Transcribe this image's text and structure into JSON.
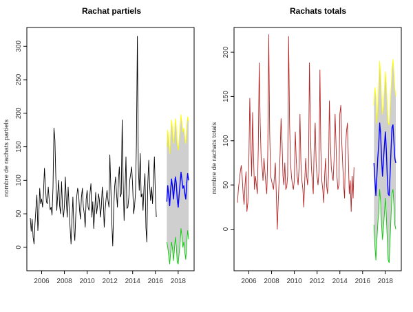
{
  "chart_data": [
    {
      "type": "line",
      "title": "Rachat partiels",
      "xlabel": "",
      "ylabel": "nombre de rachats partiels",
      "xlim": [
        2004.7,
        2019.4
      ],
      "ylim": [
        -35,
        328
      ],
      "x_ticks": [
        "2006",
        "2008",
        "2010",
        "2012",
        "2014",
        "2016",
        "2018"
      ],
      "y_ticks": [
        "0",
        "50",
        "100",
        "150",
        "200",
        "250",
        "300"
      ],
      "grid": false,
      "series": [
        {
          "role": "history",
          "color": "#000000",
          "x_start": 2005.0,
          "x_step": 0.0833,
          "values": [
            44,
            24,
            42,
            15,
            5,
            35,
            58,
            78,
            25,
            50,
            88,
            65,
            72,
            60,
            82,
            118,
            90,
            68,
            65,
            90,
            70,
            56,
            60,
            48,
            90,
            178,
            160,
            105,
            55,
            80,
            100,
            62,
            50,
            98,
            60,
            45,
            60,
            105,
            70,
            45,
            90,
            60,
            30,
            5,
            40,
            75,
            28,
            10,
            48,
            75,
            88,
            80,
            55,
            42,
            75,
            88,
            60,
            50,
            30,
            72,
            85,
            60,
            55,
            80,
            95,
            45,
            68,
            28,
            55,
            82,
            50,
            62,
            80,
            70,
            45,
            60,
            90,
            72,
            30,
            55,
            72,
            85,
            70,
            60,
            138,
            90,
            38,
            2,
            55,
            90,
            105,
            80,
            60,
            100,
            120,
            75,
            80,
            190,
            100,
            40,
            88,
            135,
            58,
            60,
            75,
            100,
            110,
            120,
            92,
            50,
            60,
            80,
            155,
            315,
            120,
            85,
            140,
            75,
            80,
            55,
            90,
            110,
            30,
            8,
            95,
            130,
            90,
            70,
            90,
            65,
            100,
            135,
            80,
            45
          ]
        },
        {
          "role": "forecast",
          "color": "#0000ff",
          "x_start": 2017.0,
          "x_step": 0.0833,
          "values": [
            68,
            92,
            78,
            62,
            85,
            102,
            90,
            72,
            88,
            105,
            96,
            72,
            60,
            78,
            95,
            112,
            100,
            88,
            92,
            80,
            72,
            95,
            110,
            100
          ]
        },
        {
          "role": "upper",
          "color": "#ffff00",
          "x_start": 2017.0,
          "x_step": 0.0833,
          "values": [
            150,
            175,
            162,
            140,
            168,
            190,
            178,
            155,
            170,
            192,
            180,
            158,
            145,
            162,
            180,
            198,
            185,
            172,
            178,
            165,
            155,
            180,
            195,
            188
          ]
        },
        {
          "role": "lower",
          "color": "#00cc00",
          "x_start": 2017.0,
          "x_step": 0.0833,
          "values": [
            8,
            0,
            -12,
            -25,
            -10,
            8,
            -2,
            -20,
            -5,
            15,
            2,
            -22,
            -25,
            -10,
            5,
            28,
            15,
            0,
            8,
            -8,
            -18,
            5,
            25,
            12
          ]
        }
      ],
      "band_color": "#cfcfcf"
    },
    {
      "type": "line",
      "title": "Rachats totals",
      "xlabel": "",
      "ylabel": "nombre de rachats totals",
      "xlim": [
        2004.7,
        2019.4
      ],
      "ylim": [
        -47,
        228
      ],
      "x_ticks": [
        "2006",
        "2008",
        "2010",
        "2012",
        "2014",
        "2016",
        "2018"
      ],
      "y_ticks": [
        "0",
        "50",
        "100",
        "150",
        "200"
      ],
      "grid": false,
      "series": [
        {
          "role": "history",
          "color": "#b22222",
          "x_start": 2005.0,
          "x_step": 0.0833,
          "values": [
            30,
            45,
            55,
            65,
            72,
            60,
            40,
            28,
            50,
            65,
            20,
            30,
            75,
            148,
            100,
            60,
            132,
            80,
            45,
            60,
            50,
            40,
            95,
            188,
            120,
            80,
            70,
            55,
            80,
            65,
            50,
            40,
            85,
            220,
            110,
            60,
            55,
            50,
            45,
            60,
            75,
            40,
            0,
            30,
            55,
            85,
            125,
            100,
            60,
            50,
            75,
            45,
            48,
            60,
            218,
            120,
            75,
            60,
            50,
            45,
            55,
            110,
            80,
            60,
            50,
            70,
            130,
            75,
            55,
            45,
            25,
            55,
            80,
            60,
            50,
            70,
            188,
            110,
            70,
            55,
            40,
            95,
            120,
            75,
            60,
            50,
            65,
            180,
            90,
            55,
            45,
            30,
            60,
            80,
            50,
            40,
            60,
            145,
            100,
            70,
            60,
            55,
            80,
            130,
            95,
            60,
            45,
            50,
            130,
            140,
            100,
            75,
            50,
            35,
            90,
            110,
            120,
            80,
            40,
            55,
            20,
            60,
            35,
            70
          ]
        },
        {
          "role": "forecast",
          "color": "#0000ff",
          "x_start": 2017.0,
          "x_step": 0.0833,
          "values": [
            75,
            55,
            38,
            60,
            80,
            95,
            120,
            108,
            80,
            60,
            78,
            95,
            110,
            90,
            60,
            40,
            38,
            62,
            90,
            115,
            118,
            100,
            80,
            75
          ]
        },
        {
          "role": "upper",
          "color": "#ffff00",
          "x_start": 2017.0,
          "x_step": 0.0833,
          "values": [
            140,
            160,
            150,
            120,
            140,
            165,
            190,
            175,
            150,
            130,
            140,
            160,
            178,
            165,
            140,
            120,
            118,
            140,
            160,
            180,
            192,
            178,
            160,
            150
          ]
        },
        {
          "role": "lower",
          "color": "#00cc00",
          "x_start": 2017.0,
          "x_step": 0.0833,
          "values": [
            5,
            -20,
            -35,
            -12,
            5,
            20,
            45,
            30,
            5,
            -12,
            2,
            18,
            35,
            15,
            -12,
            -35,
            -38,
            -12,
            15,
            40,
            45,
            28,
            5,
            0
          ]
        }
      ],
      "band_color": "#cfcfcf"
    }
  ]
}
